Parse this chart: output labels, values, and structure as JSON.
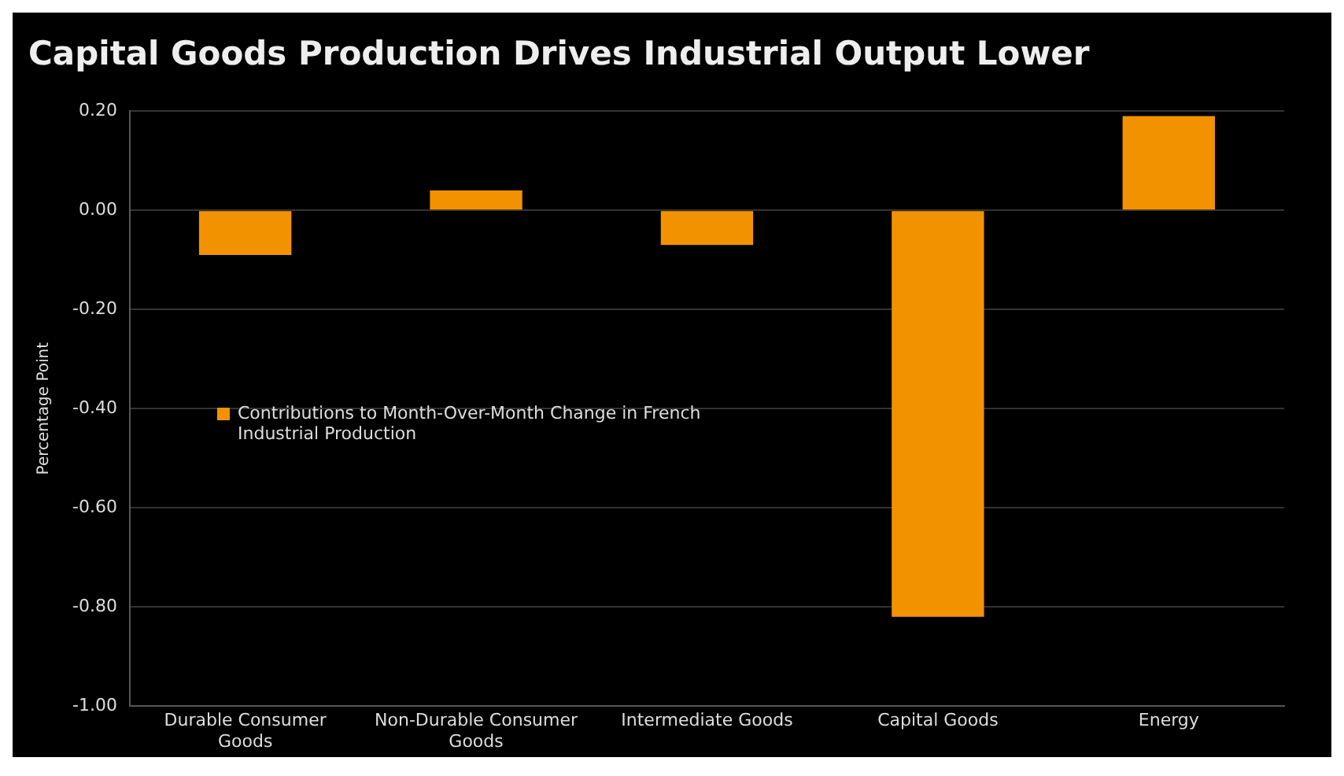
{
  "chart_data": {
    "type": "bar",
    "title": "Capital Goods Production Drives Industrial Output Lower",
    "ylabel": "Percentage Point",
    "categories": [
      "Durable Consumer Goods",
      "Non-Durable Consumer Goods",
      "Intermediate Goods",
      "Capital Goods",
      "Energy"
    ],
    "series": [
      {
        "name": "Contributions to Month-Over-Month Change in French Industrial Production",
        "color": "#f39200",
        "values": [
          -0.09,
          0.04,
          -0.07,
          -0.82,
          0.19
        ]
      }
    ],
    "ylim": [
      -1,
      0.2
    ],
    "yticks": [
      {
        "value": 0.2,
        "label": "0.20"
      },
      {
        "value": 0,
        "label": "0.00"
      },
      {
        "value": -0.2,
        "label": "-0.20"
      },
      {
        "value": -0.4,
        "label": "-0.40"
      },
      {
        "value": -0.6,
        "label": "-0.60"
      },
      {
        "value": -0.8,
        "label": "-0.80"
      },
      {
        "value": -1,
        "label": "-1.00"
      }
    ],
    "grid": "y",
    "legend": "center left"
  }
}
